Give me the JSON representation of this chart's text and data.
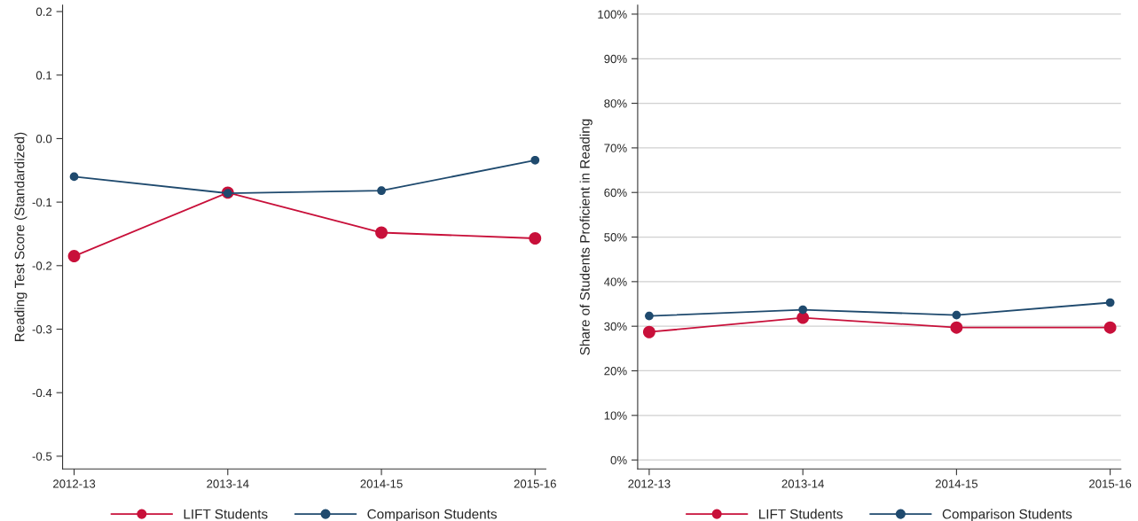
{
  "chart_data": [
    {
      "type": "line",
      "ylabel": "Reading Test Score (Standardized)",
      "categories": [
        "2012-13",
        "2013-14",
        "2014-15",
        "2015-16"
      ],
      "series": [
        {
          "name": "LIFT Students",
          "color": "#c8103a",
          "values": [
            -0.185,
            -0.085,
            -0.148,
            -0.157
          ]
        },
        {
          "name": "Comparison Students",
          "color": "#1f4a6e",
          "values": [
            -0.06,
            -0.086,
            -0.082,
            -0.034
          ]
        }
      ],
      "ylim": [
        -0.52,
        0.21
      ],
      "yticks": [
        {
          "value": 0.2,
          "label": "0.2"
        },
        {
          "value": 0.1,
          "label": "0.1"
        },
        {
          "value": 0.0,
          "label": "0.0"
        },
        {
          "value": -0.1,
          "label": "-0.1"
        },
        {
          "value": -0.2,
          "label": "-0.2"
        },
        {
          "value": -0.3,
          "label": "-0.3"
        },
        {
          "value": -0.4,
          "label": "-0.4"
        },
        {
          "value": -0.5,
          "label": "-0.5"
        }
      ],
      "grid": false,
      "legend": "bottom",
      "marker": "circle",
      "line_style": "solid"
    },
    {
      "type": "line",
      "ylabel": "Share of Students Proficient in Reading",
      "categories": [
        "2012-13",
        "2013-14",
        "2014-15",
        "2015-16"
      ],
      "series": [
        {
          "name": "LIFT Students",
          "color": "#c8103a",
          "values": [
            0.287,
            0.319,
            0.297,
            0.297
          ]
        },
        {
          "name": "Comparison Students",
          "color": "#1f4a6e",
          "values": [
            0.323,
            0.337,
            0.325,
            0.353
          ]
        }
      ],
      "ylim": [
        -0.02,
        1.02
      ],
      "yticks": [
        {
          "value": 0,
          "label": "0%"
        },
        {
          "value": 0.1,
          "label": "10%"
        },
        {
          "value": 0.2,
          "label": "20%"
        },
        {
          "value": 0.3,
          "label": "30%"
        },
        {
          "value": 0.4,
          "label": "40%"
        },
        {
          "value": 0.5,
          "label": "50%"
        },
        {
          "value": 0.6,
          "label": "60%"
        },
        {
          "value": 0.7,
          "label": "70%"
        },
        {
          "value": 0.8,
          "label": "80%"
        },
        {
          "value": 0.9,
          "label": "90%"
        },
        {
          "value": 1.0,
          "label": "100%"
        }
      ],
      "grid": "y",
      "legend": "bottom",
      "marker": "circle",
      "line_style": "solid"
    }
  ]
}
